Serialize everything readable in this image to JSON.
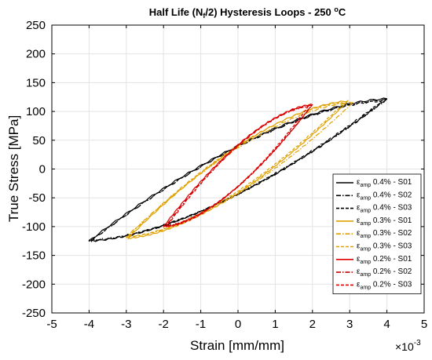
{
  "chart_data": {
    "type": "line",
    "title_parts": {
      "pre": "Half Life (N",
      "sub": "f",
      "mid": "/2) Hysteresis Loops - 250 ",
      "sup": "o",
      "post": "C"
    },
    "xlabel": "Strain [mm/mm]",
    "ylabel": "True Stress [MPa]",
    "x_multiplier": {
      "base": "×10",
      "exp": "-3"
    },
    "xlim": [
      -5,
      5
    ],
    "ylim": [
      -250,
      250
    ],
    "xticks": [
      -5,
      -4,
      -3,
      -2,
      -1,
      0,
      1,
      2,
      3,
      4,
      5
    ],
    "yticks": [
      -250,
      -200,
      -150,
      -100,
      -50,
      0,
      50,
      100,
      150,
      200,
      250
    ],
    "grid": true,
    "legend_position": "lower-right",
    "series": [
      {
        "name_sym": "ε",
        "name_sub": "amp",
        "name_rest": " 0.4% - S01",
        "color": "#000000",
        "dash": "",
        "amp": 4.0,
        "smax": 122,
        "smin": -125,
        "shift": 0,
        "noise": 3
      },
      {
        "name_sym": "ε",
        "name_sub": "amp",
        "name_rest": " 0.4% - S02",
        "color": "#000000",
        "dash": "6,2,1.5,2",
        "amp": 3.95,
        "smax": 120,
        "smin": -123,
        "shift": 0.03,
        "noise": 3
      },
      {
        "name_sym": "ε",
        "name_sub": "amp",
        "name_rest": " 0.4% - S03",
        "color": "#000000",
        "dash": "4,2",
        "amp": 3.9,
        "smax": 118,
        "smin": -124,
        "shift": -0.03,
        "noise": 3
      },
      {
        "name_sym": "ε",
        "name_sub": "amp",
        "name_rest": " 0.3% - S01",
        "color": "#e0a100",
        "dash": "",
        "amp": 2.95,
        "smax": 118,
        "smin": -120,
        "shift": 0,
        "noise": 2
      },
      {
        "name_sym": "ε",
        "name_sub": "amp",
        "name_rest": " 0.3% - S02",
        "color": "#e0a100",
        "dash": "6,2,1.5,2",
        "amp": 3.05,
        "smax": 116,
        "smin": -118,
        "shift": 0.05,
        "noise": 2
      },
      {
        "name_sym": "ε",
        "name_sub": "amp",
        "name_rest": " 0.3% - S03",
        "color": "#e0a100",
        "dash": "4,2",
        "amp": 2.9,
        "smax": 115,
        "smin": -117,
        "shift": -0.05,
        "noise": 2
      },
      {
        "name_sym": "ε",
        "name_sub": "amp",
        "name_rest": " 0.2% - S01",
        "color": "#e00000",
        "dash": "",
        "amp": 2.0,
        "smax": 112,
        "smin": -100,
        "shift": 0,
        "noise": 2
      },
      {
        "name_sym": "ε",
        "name_sub": "amp",
        "name_rest": " 0.2% - S02",
        "color": "#c00000",
        "dash": "6,2,1.5,2",
        "amp": 1.95,
        "smax": 110,
        "smin": -98,
        "shift": 0.02,
        "noise": 2
      },
      {
        "name_sym": "ε",
        "name_sub": "amp",
        "name_rest": " 0.2% - S03",
        "color": "#e00000",
        "dash": "4,2",
        "amp": 1.9,
        "smax": 108,
        "smin": -100,
        "shift": -0.02,
        "noise": 2
      }
    ]
  }
}
